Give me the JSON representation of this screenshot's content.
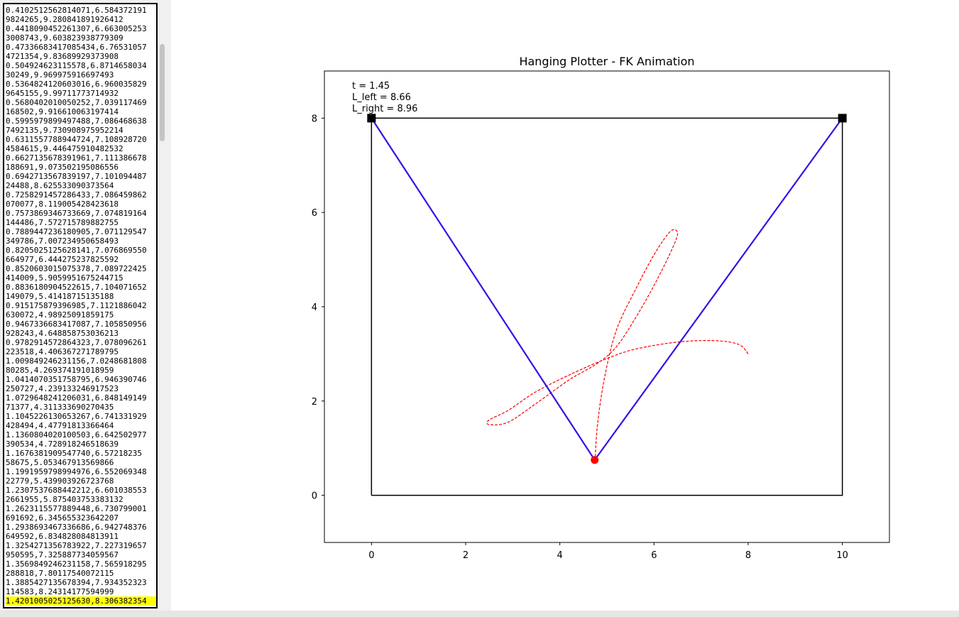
{
  "data_list": {
    "lines": [
      "0.4102512562814071,6.584372191",
      "9824265,9.280841891926412",
      "0.4418090452261307,6.663005253",
      "3008743,9.603823938779309",
      "0.47336683417085434,6.76531057",
      "4721354,9.83689929373908",
      "0.504924623115578,6.8714658034",
      "30249,9.969975916697493",
      "0.5364824120603016,6.960035829",
      "9645155,9.99711773714932",
      "0.5680402010050252,7.039117469",
      "168502,9.916610063197414",
      "0.5995979899497488,7.086468638",
      "7492135,9.730908975952214",
      "0.6311557788944724,7.108928720",
      "4584615,9.446475910482532",
      "0.6627135678391961,7.111386678",
      "188691,9.073502195086556",
      "0.6942713567839197,7.101094487",
      "24488,8.625533090373564",
      "0.7258291457286433,7.086459862",
      "070077,8.119005428423618",
      "0.7573869346733669,7.074819164",
      "144486,7.572715789882755",
      "0.7889447236180905,7.071129547",
      "349786,7.007234950658493",
      "0.8205025125628141,7.076869550",
      "664977,6.444275237825592",
      "0.8520603015075378,7.089722425",
      "414009,5.9059951675244715",
      "0.8836180904522615,7.104071652",
      "149079,5.41418715135188",
      "0.915175879396985,7.1121886042",
      "630072,4.98925091859175",
      "0.9467336683417087,7.105850956",
      "928243,4.648858753036213",
      "0.9782914572864323,7.078096261",
      "223518,4.406367271789795",
      "1.009849246231156,7.0248681808",
      "80285,4.269374191018959",
      "1.0414070351758795,6.946390746",
      "250727,4.239133246917523",
      "1.0729648241206031,6.848149149",
      "71377,4.311333690270435",
      "1.1045226130653267,6.741331929",
      "428494,4.47791813366464",
      "1.1360804020100503,6.642502977",
      "390534,4.728918246518639",
      "1.1676381909547740,6.57218235",
      "58675,5.053467913569866",
      "1.1991959798994976,6.552069348",
      "22779,5.439903926723768",
      "1.2307537688442212,6.601038553",
      "2661955,5.875403753383132",
      "1.2623115577889448,6.730799001",
      "691692,6.345655323642207",
      "1.2938693467336686,6.942748376",
      "649592,6.834828084813911",
      "1.3254271356783922,7.227319657",
      "950595,7.325887734059567",
      "1.3569849246231158,7.565918295",
      "288818,7.80117540072115",
      "1.3885427135678394,7.934352323",
      "114583,8.24314177594999",
      "1.4201005025125630,8.306382354"
    ]
  },
  "chart_data": {
    "type": "line",
    "title": "Hanging Plotter - FK Animation",
    "xlim": [
      -1,
      11
    ],
    "ylim": [
      -1,
      9
    ],
    "xticks": [
      0,
      2,
      4,
      6,
      8,
      10
    ],
    "yticks": [
      0,
      2,
      4,
      6,
      8
    ],
    "annotations": [
      "t = 1.45",
      "L_left = 8.66",
      "L_right = 8.96"
    ],
    "frame": {
      "x": [
        0,
        10,
        10,
        0,
        0
      ],
      "y": [
        0,
        0,
        8,
        8,
        0
      ],
      "color": "#000000"
    },
    "anchors": {
      "x": [
        0,
        10
      ],
      "y": [
        8,
        8
      ],
      "color": "#000000"
    },
    "strings": {
      "x": [
        0,
        4.74,
        10
      ],
      "y": [
        8,
        0.75,
        8
      ],
      "color": "#3a0ee8"
    },
    "pen": {
      "x": 4.74,
      "y": 0.75,
      "color": "#ff0000"
    },
    "trajectory": {
      "style": "dashed",
      "color": "#ff0000",
      "x": [
        8,
        7.8,
        7.3,
        6.5,
        5.6,
        5.0,
        4.3,
        3.5,
        2.9,
        2.5,
        2.5,
        2.9,
        3.5,
        4.2,
        4.8,
        5.2,
        5.6,
        6.0,
        6.35,
        6.5,
        6.35,
        6.0,
        5.6,
        5.2,
        4.95,
        4.8,
        4.75
      ],
      "y": [
        3.0,
        3.2,
        3.28,
        3.25,
        3.1,
        2.9,
        2.6,
        2.2,
        1.8,
        1.6,
        1.5,
        1.55,
        1.95,
        2.45,
        2.8,
        3.15,
        3.75,
        4.45,
        5.15,
        5.55,
        5.6,
        5.1,
        4.35,
        3.5,
        2.5,
        1.5,
        0.75
      ]
    }
  }
}
